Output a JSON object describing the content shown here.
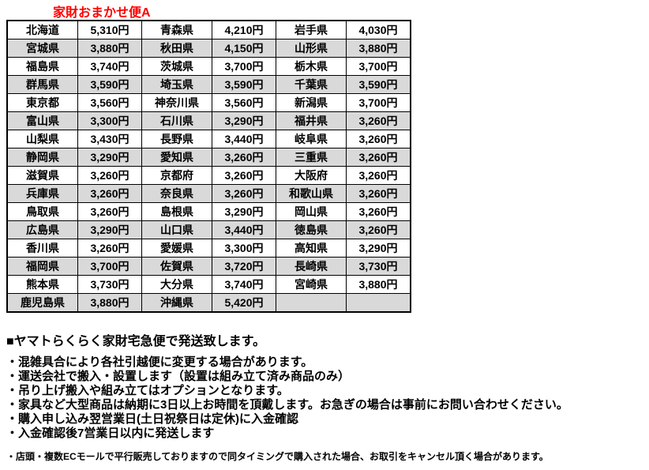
{
  "title": "家財おまかせ便A",
  "colors": {
    "title_red": "#ff0000",
    "row_shade": "#d9d9d9",
    "border": "#000000",
    "text": "#000000"
  },
  "table": {
    "columns": [
      "prefecture",
      "price",
      "prefecture",
      "price",
      "prefecture",
      "price"
    ],
    "rows": [
      [
        "北海道",
        "5,310円",
        "青森県",
        "4,210円",
        "岩手県",
        "4,030円"
      ],
      [
        "宮城県",
        "3,880円",
        "秋田県",
        "4,150円",
        "山形県",
        "3,880円"
      ],
      [
        "福島県",
        "3,740円",
        "茨城県",
        "3,700円",
        "栃木県",
        "3,700円"
      ],
      [
        "群馬県",
        "3,590円",
        "埼玉県",
        "3,590円",
        "千葉県",
        "3,590円"
      ],
      [
        "東京都",
        "3,560円",
        "神奈川県",
        "3,560円",
        "新潟県",
        "3,700円"
      ],
      [
        "富山県",
        "3,300円",
        "石川県",
        "3,290円",
        "福井県",
        "3,260円"
      ],
      [
        "山梨県",
        "3,430円",
        "長野県",
        "3,440円",
        "岐阜県",
        "3,260円"
      ],
      [
        "静岡県",
        "3,290円",
        "愛知県",
        "3,260円",
        "三重県",
        "3,260円"
      ],
      [
        "滋賀県",
        "3,260円",
        "京都府",
        "3,260円",
        "大阪府",
        "3,260円"
      ],
      [
        "兵庫県",
        "3,260円",
        "奈良県",
        "3,260円",
        "和歌山県",
        "3,260円"
      ],
      [
        "鳥取県",
        "3,260円",
        "島根県",
        "3,290円",
        "岡山県",
        "3,260円"
      ],
      [
        "広島県",
        "3,290円",
        "山口県",
        "3,440円",
        "徳島県",
        "3,260円"
      ],
      [
        "香川県",
        "3,260円",
        "愛媛県",
        "3,300円",
        "高知県",
        "3,290円"
      ],
      [
        "福岡県",
        "3,700円",
        "佐賀県",
        "3,720円",
        "長崎県",
        "3,730円"
      ],
      [
        "熊本県",
        "3,730円",
        "大分県",
        "3,740円",
        "宮崎県",
        "3,880円"
      ],
      [
        "鹿児島県",
        "3,880円",
        "沖縄県",
        "5,420円",
        "",
        ""
      ]
    ]
  },
  "notes": {
    "heading": "■ヤマトらくらく家財宅急便で発送致します。",
    "bullets": [
      "・混雑具合により各社引越便に変更する場合があります。",
      "・運送会社で搬入・設置します（設置は組み立て済み商品のみ）",
      "・吊り上げ搬入や組み立てはオプションとなります。",
      "・家具など大型商品は納期に3日以上お時間を頂戴します。お急ぎの場合は事前にお問い合わせください。",
      "・購入申し込み翌営業日(土日祝祭日は定休)に入金確認",
      "・入金確認後7営業日以内に発送します"
    ],
    "small_note": "・店頭・複数ECモールで平行販売しておりますので同タイミングで購入された場合、お取引をキャンセル頂く場合があります。"
  }
}
